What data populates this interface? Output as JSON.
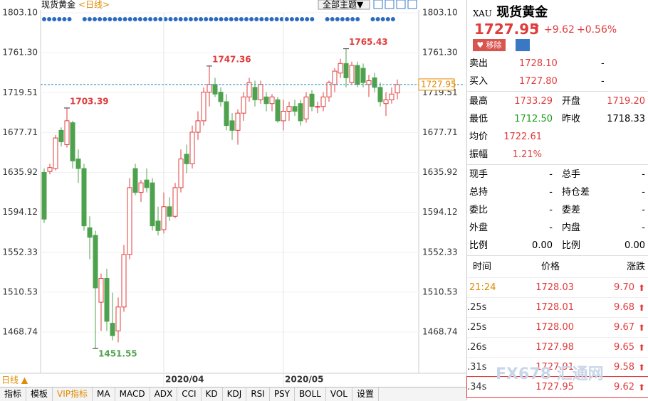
{
  "header": {
    "title": "现货黄金",
    "period_label": "<日线>",
    "theme_button": "全部主题▼"
  },
  "chart_data": {
    "type": "candlestick",
    "categories": [
      null,
      null,
      null,
      null,
      null,
      null,
      null,
      null,
      null,
      null,
      null,
      null,
      null,
      null,
      null,
      null,
      null,
      null,
      null,
      null,
      null,
      "2020/04",
      null,
      null,
      null,
      null,
      null,
      null,
      null,
      null,
      null,
      null,
      null,
      null,
      null,
      null,
      null,
      null,
      null,
      null,
      null,
      null,
      "2020/05",
      null,
      null,
      null,
      null,
      null,
      null,
      null,
      null,
      null,
      null,
      null,
      null,
      null,
      null,
      null,
      null,
      null,
      null,
      null,
      null
    ],
    "open": [
      1636,
      1637,
      1640,
      1680,
      1665,
      1688,
      1650,
      1640,
      1578,
      1570,
      1500,
      1525,
      1478,
      1470,
      1495,
      1550,
      1640,
      1615,
      1628,
      1625,
      1585,
      1576,
      1600,
      1590,
      1620,
      1655,
      1645,
      1678,
      1690,
      1720,
      1728,
      1720,
      1710,
      1690,
      1680,
      1698,
      1715,
      1725,
      1712,
      1715,
      1708,
      1712,
      1690,
      1700,
      1705,
      1708,
      1692,
      1718,
      1705,
      1705,
      1715,
      1728,
      1740,
      1750,
      1730,
      1748,
      1745,
      1728,
      1735,
      1725,
      1708,
      1712,
      1719.2
    ],
    "high": [
      1640,
      1645,
      1675,
      1683,
      1703.39,
      1690,
      1660,
      1645,
      1590,
      1575,
      1530,
      1535,
      1510,
      1505,
      1560,
      1630,
      1645,
      1628,
      1640,
      1630,
      1600,
      1615,
      1610,
      1625,
      1660,
      1665,
      1685,
      1700,
      1725,
      1747.36,
      1735,
      1725,
      1718,
      1698,
      1702,
      1720,
      1735,
      1732,
      1732,
      1720,
      1718,
      1715,
      1712,
      1710,
      1712,
      1712,
      1720,
      1722,
      1710,
      1720,
      1732,
      1745,
      1755,
      1765.43,
      1752,
      1752,
      1750,
      1738,
      1740,
      1730,
      1720,
      1725,
      1733.29
    ],
    "low": [
      1583,
      1634,
      1638,
      1663,
      1662,
      1640,
      1625,
      1575,
      1545,
      1451.55,
      1470,
      1470,
      1460,
      1458,
      1490,
      1545,
      1612,
      1605,
      1615,
      1575,
      1570,
      1572,
      1585,
      1588,
      1615,
      1635,
      1640,
      1670,
      1685,
      1705,
      1715,
      1705,
      1680,
      1670,
      1665,
      1690,
      1710,
      1705,
      1708,
      1700,
      1700,
      1688,
      1680,
      1690,
      1695,
      1685,
      1688,
      1700,
      1698,
      1700,
      1710,
      1720,
      1735,
      1725,
      1728,
      1725,
      1725,
      1715,
      1720,
      1705,
      1695,
      1708,
      1712.5
    ],
    "close": [
      1587,
      1641,
      1672,
      1668,
      1690,
      1648,
      1640,
      1580,
      1568,
      1515,
      1525,
      1480,
      1465,
      1495,
      1550,
      1620,
      1615,
      1625,
      1620,
      1580,
      1575,
      1600,
      1590,
      1620,
      1650,
      1645,
      1678,
      1690,
      1720,
      1728,
      1718,
      1710,
      1685,
      1680,
      1698,
      1715,
      1730,
      1712,
      1728,
      1708,
      1715,
      1690,
      1700,
      1705,
      1700,
      1690,
      1715,
      1705,
      1705,
      1715,
      1730,
      1742,
      1750,
      1735,
      1748,
      1728,
      1730,
      1732,
      1725,
      1710,
      1712,
      1718,
      1727.95
    ],
    "up_color": "#e03c3c",
    "down_color": "#4ea24e",
    "ylim": [
      1425.6,
      1803.1
    ],
    "yticks": [
      {
        "value": 1803.1,
        "label": "1803.10"
      },
      {
        "value": 1761.3,
        "label": "1761.30"
      },
      1719.51,
      1677.71,
      1635.92,
      1594.12,
      1552.33,
      1510.53,
      1468.74
    ],
    "grid": true
  },
  "footer": {
    "period": "日线 ▲",
    "tabs": [
      "指标",
      "模板",
      "VIP指标",
      "MA",
      "MACD",
      "ADX",
      "CCI",
      "KD",
      "KDJ",
      "RSI",
      "PSY",
      "BOLL",
      "VOL",
      "设置"
    ]
  },
  "quote": {
    "symbol": "XAU",
    "name": "现货黄金",
    "price": "1727.95",
    "change": "+9.62",
    "change_pct": "+0.56%",
    "remove_button": "移除",
    "bid_ask": [
      {
        "label": "卖出",
        "price": "1728.10",
        "volume": "-"
      },
      {
        "label": "买入",
        "price": "1727.80",
        "volume": "-"
      }
    ],
    "stats": [
      [
        [
          "最高",
          "1733.29"
        ],
        [
          "开盘",
          "1719.20"
        ]
      ],
      [
        [
          "最低",
          "1712.50"
        ],
        [
          "昨收",
          "1718.33"
        ]
      ],
      [
        [
          "均价",
          "1722.61"
        ]
      ],
      [
        [
          "振幅",
          "1.21%"
        ]
      ]
    ],
    "volume_stats": [
      [
        [
          "现手",
          "-"
        ],
        [
          "总手",
          "-"
        ]
      ],
      [
        [
          "总持",
          "-"
        ],
        [
          "持仓差",
          "-"
        ]
      ],
      [
        [
          "委比",
          "-"
        ],
        [
          "委差",
          "-"
        ]
      ],
      [
        [
          "外盘",
          "-"
        ],
        [
          "内盘",
          "-"
        ]
      ],
      [
        [
          "比例",
          "0.00"
        ],
        [
          "比例",
          "0.00"
        ]
      ]
    ],
    "trades": {
      "columns": [
        "时间",
        "价格",
        "涨跌"
      ],
      "rows": [
        [
          "21:24",
          "1728.03",
          "9.70"
        ],
        [
          ".25s",
          "1728.01",
          "9.68"
        ],
        [
          ".25s",
          "1728.00",
          "9.67"
        ],
        [
          ".26s",
          "1727.98",
          "9.65"
        ],
        [
          ".31s",
          "1727.91",
          "9.58"
        ],
        [
          ".34s",
          "1727.95",
          "9.62"
        ]
      ]
    },
    "watermark": "FX678 汇通网"
  }
}
